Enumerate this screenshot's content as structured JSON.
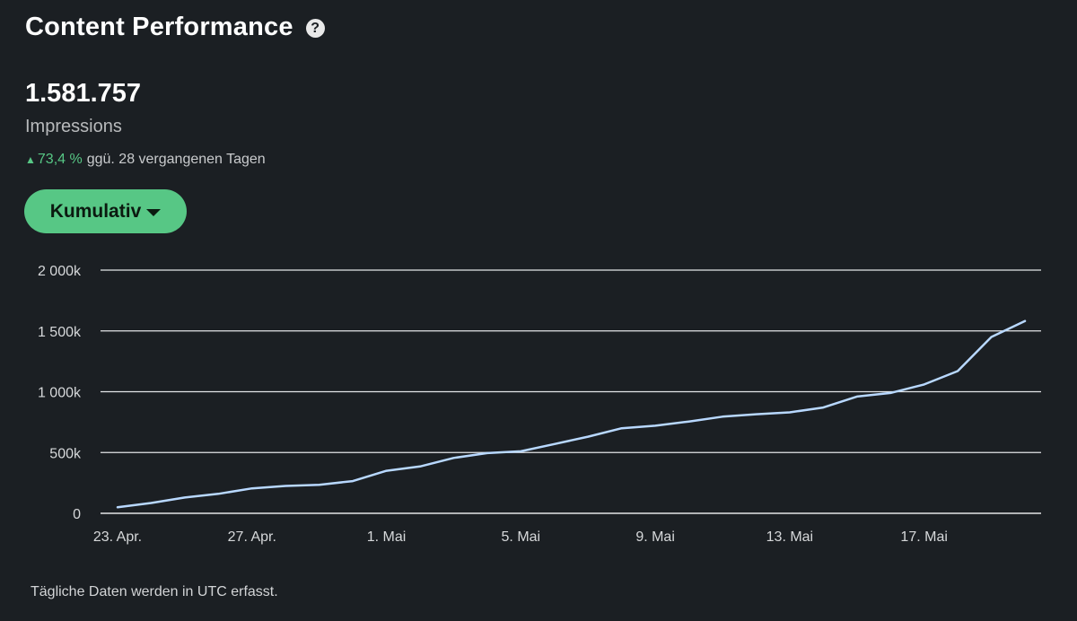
{
  "header": {
    "title": "Content Performance",
    "help_icon": "question-circle-icon"
  },
  "metric": {
    "value": "1.581.757",
    "label": "Impressions",
    "change_icon": "triangle-up-icon",
    "change_percent": "73,4 %",
    "change_text": "ggü. 28 vergangenen Tagen",
    "change_color": "#57c785"
  },
  "dropdown": {
    "label": "Kumulativ",
    "icon": "caret-down-icon",
    "color": "#57c785"
  },
  "chart_data": {
    "type": "line",
    "title": "",
    "xlabel": "",
    "ylabel": "",
    "ylim": [
      0,
      2000000
    ],
    "grid": true,
    "line_color": "#b8d8ff",
    "y_ticks": [
      {
        "value": 0,
        "label": "0"
      },
      {
        "value": 500000,
        "label": "500k"
      },
      {
        "value": 1000000,
        "label": "1 000k"
      },
      {
        "value": 1500000,
        "label": "1 500k"
      },
      {
        "value": 2000000,
        "label": "2 000k"
      }
    ],
    "x_ticks": [
      {
        "index": 0,
        "label": "23. Apr."
      },
      {
        "index": 4,
        "label": "27. Apr."
      },
      {
        "index": 8,
        "label": "1. Mai"
      },
      {
        "index": 12,
        "label": "5. Mai"
      },
      {
        "index": 16,
        "label": "9. Mai"
      },
      {
        "index": 20,
        "label": "13. Mai"
      },
      {
        "index": 24,
        "label": "17. Mai"
      }
    ],
    "x": [
      "23. Apr.",
      "24. Apr.",
      "25. Apr.",
      "26. Apr.",
      "27. Apr.",
      "28. Apr.",
      "29. Apr.",
      "30. Apr.",
      "1. Mai",
      "2. Mai",
      "3. Mai",
      "4. Mai",
      "5. Mai",
      "6. Mai",
      "7. Mai",
      "8. Mai",
      "9. Mai",
      "10. Mai",
      "11. Mai",
      "12. Mai",
      "13. Mai",
      "14. Mai",
      "15. Mai",
      "16. Mai",
      "17. Mai",
      "18. Mai",
      "19. Mai",
      "20. Mai"
    ],
    "series": [
      {
        "values": [
          50000,
          85000,
          130000,
          160000,
          205000,
          225000,
          235000,
          265000,
          350000,
          385000,
          455000,
          495000,
          510000,
          570000,
          630000,
          700000,
          720000,
          755000,
          795000,
          815000,
          830000,
          870000,
          960000,
          990000,
          1060000,
          1170000,
          1450000,
          1581757
        ]
      }
    ]
  },
  "footer": {
    "note": "Tägliche Daten werden in UTC erfasst."
  }
}
